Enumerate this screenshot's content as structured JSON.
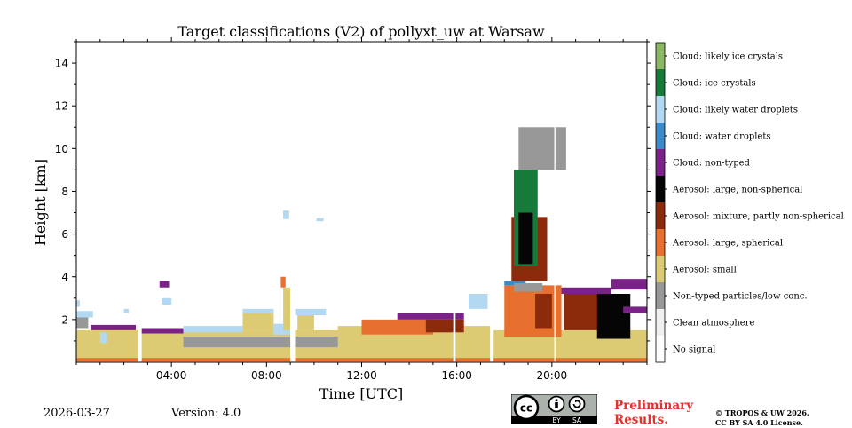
{
  "chart_data": {
    "type": "heatmap",
    "title": "Target classifications (V2) of pollyxt_uw at Warsaw",
    "xlabel": "Time [UTC]",
    "ylabel": "Height [km]",
    "xlim_hours": [
      0,
      24
    ],
    "ylim_km": [
      0,
      15
    ],
    "x_ticks": [
      {
        "value": 4,
        "label": "04:00"
      },
      {
        "value": 8,
        "label": "08:00"
      },
      {
        "value": 12,
        "label": "12:00"
      },
      {
        "value": 16,
        "label": "16:00"
      },
      {
        "value": 20,
        "label": "20:00"
      }
    ],
    "y_ticks": [
      {
        "value": 2,
        "label": "2"
      },
      {
        "value": 4,
        "label": "4"
      },
      {
        "value": 6,
        "label": "6"
      },
      {
        "value": 8,
        "label": "8"
      },
      {
        "value": 10,
        "label": "10"
      },
      {
        "value": 12,
        "label": "12"
      },
      {
        "value": 14,
        "label": "14"
      }
    ],
    "legend": [
      {
        "label": "No signal",
        "color": "#ffffff"
      },
      {
        "label": "Clean atmosphere",
        "color": "#f0f0f0"
      },
      {
        "label": "Non-typed particles/low conc.",
        "color": "#989898"
      },
      {
        "label": "Aerosol: small",
        "color": "#dccb72"
      },
      {
        "label": "Aerosol: large, spherical",
        "color": "#e8702f"
      },
      {
        "label": "Aerosol: mixture, partly non-spherical",
        "color": "#8c2a0c"
      },
      {
        "label": "Aerosol: large, non-spherical",
        "color": "#050505"
      },
      {
        "label": "Cloud: non-typed",
        "color": "#7a2288"
      },
      {
        "label": "Cloud: water droplets",
        "color": "#3b8bcb"
      },
      {
        "label": "Cloud: likely water droplets",
        "color": "#b2d8f2"
      },
      {
        "label": "Cloud: ice crystals",
        "color": "#157a3a"
      },
      {
        "label": "Cloud: likely ice crystals",
        "color": "#8cb765"
      }
    ],
    "regions": [
      {
        "class": "Aerosol: small",
        "t0": 0,
        "t1": 24,
        "h0": 0,
        "h1": 1.5
      },
      {
        "class": "Aerosol: large, spherical",
        "t0": 0,
        "t1": 24,
        "h0": 0.05,
        "h1": 0.2
      },
      {
        "class": "Non-typed particles/low conc.",
        "t0": 0,
        "t1": 0.5,
        "h0": 1.6,
        "h1": 2.2
      },
      {
        "class": "Cloud: likely water droplets",
        "t0": 0,
        "t1": 0.7,
        "h0": 2.1,
        "h1": 2.4
      },
      {
        "class": "Cloud: likely water droplets",
        "t0": 0,
        "t1": 0.15,
        "h0": 2.6,
        "h1": 2.9
      },
      {
        "class": "Cloud: non-typed",
        "t0": 0.6,
        "t1": 2.5,
        "h0": 1.5,
        "h1": 1.75
      },
      {
        "class": "Cloud: likely water droplets",
        "t0": 1.0,
        "t1": 1.3,
        "h0": 0.9,
        "h1": 1.4
      },
      {
        "class": "Cloud: likely water droplets",
        "t0": 2.0,
        "t1": 2.2,
        "h0": 2.3,
        "h1": 2.5
      },
      {
        "class": "Cloud: non-typed",
        "t0": 2.7,
        "t1": 4.5,
        "h0": 1.35,
        "h1": 1.6
      },
      {
        "class": "Cloud: likely water droplets",
        "t0": 3.6,
        "t1": 4.0,
        "h0": 2.7,
        "h1": 3.0
      },
      {
        "class": "Cloud: non-typed",
        "t0": 3.5,
        "t1": 3.9,
        "h0": 3.5,
        "h1": 3.8
      },
      {
        "class": "Cloud: likely water droplets",
        "t0": 4.5,
        "t1": 7.0,
        "h0": 1.4,
        "h1": 1.7
      },
      {
        "class": "Non-typed particles/low conc.",
        "t0": 4.5,
        "t1": 11.0,
        "h0": 0.7,
        "h1": 1.2
      },
      {
        "class": "Aerosol: small",
        "t0": 7.0,
        "t1": 8.3,
        "h0": 1.5,
        "h1": 2.4
      },
      {
        "class": "Cloud: likely water droplets",
        "t0": 7.0,
        "t1": 8.3,
        "h0": 2.3,
        "h1": 2.5
      },
      {
        "class": "Cloud: likely water droplets",
        "t0": 8.3,
        "t1": 9.0,
        "h0": 1.3,
        "h1": 1.8
      },
      {
        "class": "Aerosol: large, spherical",
        "t0": 8.6,
        "t1": 8.8,
        "h0": 3.5,
        "h1": 4.0
      },
      {
        "class": "Aerosol: small",
        "t0": 8.7,
        "t1": 9.0,
        "h0": 1.5,
        "h1": 3.5
      },
      {
        "class": "Cloud: likely water droplets",
        "t0": 8.7,
        "t1": 8.95,
        "h0": 6.7,
        "h1": 7.1
      },
      {
        "class": "Aerosol: small",
        "t0": 9.3,
        "t1": 10.0,
        "h0": 1.5,
        "h1": 2.2
      },
      {
        "class": "Cloud: likely water droplets",
        "t0": 9.0,
        "t1": 10.5,
        "h0": 2.2,
        "h1": 2.5
      },
      {
        "class": "Cloud: likely water droplets",
        "t0": 10.1,
        "t1": 10.4,
        "h0": 6.6,
        "h1": 6.75
      },
      {
        "class": "Aerosol: small",
        "t0": 11.0,
        "t1": 17.5,
        "h0": 1.2,
        "h1": 1.7
      },
      {
        "class": "Aerosol: large, spherical",
        "t0": 12.0,
        "t1": 15.0,
        "h0": 1.3,
        "h1": 2.0
      },
      {
        "class": "Cloud: non-typed",
        "t0": 13.5,
        "t1": 16.3,
        "h0": 2.0,
        "h1": 2.3
      },
      {
        "class": "Aerosol: mixture, partly non-spherical",
        "t0": 14.7,
        "t1": 16.3,
        "h0": 1.4,
        "h1": 2.0
      },
      {
        "class": "Cloud: likely water droplets",
        "t0": 16.5,
        "t1": 17.3,
        "h0": 2.5,
        "h1": 3.2
      },
      {
        "class": "Aerosol: large, spherical",
        "t0": 18.0,
        "t1": 20.4,
        "h0": 1.2,
        "h1": 3.6
      },
      {
        "class": "Cloud: water droplets",
        "t0": 18.0,
        "t1": 18.9,
        "h0": 3.6,
        "h1": 3.8
      },
      {
        "class": "Non-typed particles/low conc.",
        "t0": 18.4,
        "t1": 19.6,
        "h0": 3.3,
        "h1": 3.7
      },
      {
        "class": "Aerosol: mixture, partly non-spherical",
        "t0": 18.3,
        "t1": 19.8,
        "h0": 3.8,
        "h1": 6.8
      },
      {
        "class": "Cloud: ice crystals",
        "t0": 18.4,
        "t1": 19.4,
        "h0": 4.5,
        "h1": 9.0
      },
      {
        "class": "Aerosol: large, non-spherical",
        "t0": 18.6,
        "t1": 19.2,
        "h0": 4.6,
        "h1": 7.0
      },
      {
        "class": "Non-typed particles/low conc.",
        "t0": 18.6,
        "t1": 20.6,
        "h0": 9.0,
        "h1": 11.0
      },
      {
        "class": "Aerosol: mixture, partly non-spherical",
        "t0": 19.3,
        "t1": 20.0,
        "h0": 1.6,
        "h1": 3.2
      },
      {
        "class": "Aerosol: mixture, partly non-spherical",
        "t0": 20.5,
        "t1": 22.0,
        "h0": 1.5,
        "h1": 3.4
      },
      {
        "class": "Cloud: non-typed",
        "t0": 20.4,
        "t1": 22.5,
        "h0": 3.2,
        "h1": 3.5
      },
      {
        "class": "Aerosol: large, non-spherical",
        "t0": 21.9,
        "t1": 23.3,
        "h0": 1.1,
        "h1": 3.2
      },
      {
        "class": "Cloud: non-typed",
        "t0": 22.5,
        "t1": 24.0,
        "h0": 3.4,
        "h1": 3.9
      },
      {
        "class": "Cloud: non-typed",
        "t0": 23.0,
        "t1": 24.0,
        "h0": 2.3,
        "h1": 2.6
      }
    ],
    "gaps": [
      {
        "t0": 2.6,
        "t1": 2.75
      },
      {
        "t0": 9.0,
        "t1": 9.2
      },
      {
        "t0": 15.85,
        "t1": 15.95
      },
      {
        "t0": 17.4,
        "t1": 17.55
      },
      {
        "t0": 20.1,
        "t1": 20.15
      }
    ]
  },
  "footer": {
    "date": "2026-03-27",
    "version": "Version: 4.0",
    "license_badge": {
      "cc": "cc",
      "by": "BY",
      "sa": "SA"
    },
    "preliminary_line1": "Preliminary",
    "preliminary_line2": "Results.",
    "copyright_line1": "© TROPOS & UW 2026.",
    "copyright_line2": "CC BY SA 4.0 License."
  }
}
